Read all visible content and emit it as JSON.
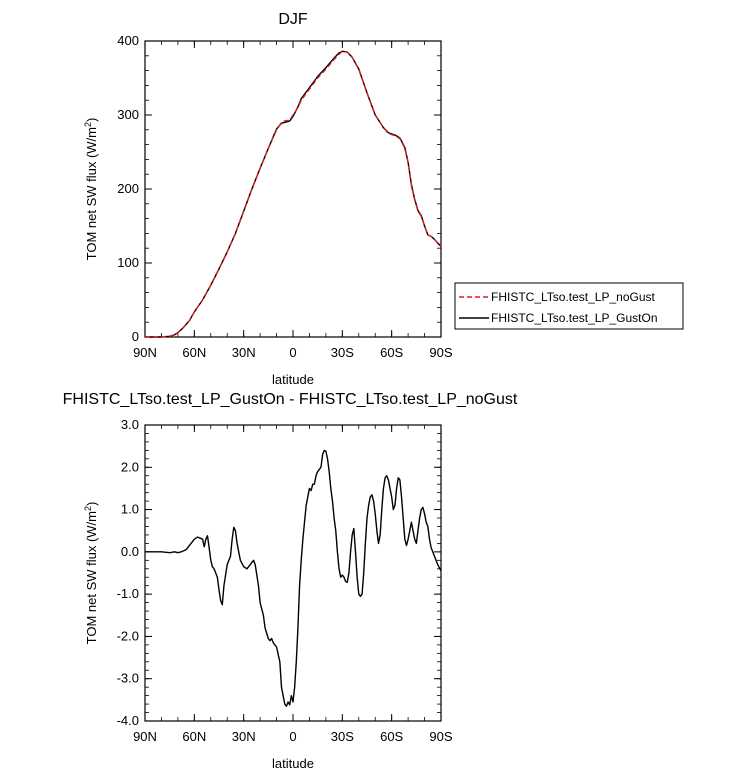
{
  "chart_data": [
    {
      "type": "line",
      "title": "DJF",
      "xlabel": "latitude",
      "ylabel": "TOM net SW flux (W/m",
      "ylabel_sup": "2",
      "ylabel_tail": ")",
      "xlim": [
        90,
        -90
      ],
      "ylim": [
        0,
        400
      ],
      "xticks": [
        {
          "v": 90,
          "label": "90N"
        },
        {
          "v": 60,
          "label": "60N"
        },
        {
          "v": 30,
          "label": "30N"
        },
        {
          "v": 0,
          "label": "0"
        },
        {
          "v": -30,
          "label": "30S"
        },
        {
          "v": -60,
          "label": "60S"
        },
        {
          "v": -90,
          "label": "90S"
        }
      ],
      "yticks": [
        {
          "v": 0,
          "label": "0"
        },
        {
          "v": 100,
          "label": "100"
        },
        {
          "v": 200,
          "label": "200"
        },
        {
          "v": 300,
          "label": "300"
        },
        {
          "v": 400,
          "label": "400"
        }
      ],
      "legend_position": "right",
      "series": [
        {
          "name": "FHISTC_LTso.test_LP_noGust",
          "color": "#e41a1c",
          "dash": "dashed",
          "points": [
            [
              90,
              0
            ],
            [
              80,
              0
            ],
            [
              75,
              1
            ],
            [
              72,
              3
            ],
            [
              70,
              6
            ],
            [
              67,
              12
            ],
            [
              63,
              22
            ],
            [
              60,
              34
            ],
            [
              55,
              50
            ],
            [
              50,
              70
            ],
            [
              45,
              92
            ],
            [
              40,
              115
            ],
            [
              35,
              140
            ],
            [
              30,
              170
            ],
            [
              25,
              200
            ],
            [
              20,
              228
            ],
            [
              15,
              255
            ],
            [
              10,
              280
            ],
            [
              7,
              290
            ],
            [
              5,
              292
            ],
            [
              2,
              293
            ],
            [
              0,
              300
            ],
            [
              -3,
              310
            ],
            [
              -5,
              320
            ],
            [
              -10,
              335
            ],
            [
              -15,
              350
            ],
            [
              -20,
              362
            ],
            [
              -25,
              375
            ],
            [
              -28,
              382
            ],
            [
              -30,
              386
            ],
            [
              -33,
              385
            ],
            [
              -36,
              378
            ],
            [
              -40,
              362
            ],
            [
              -45,
              330
            ],
            [
              -50,
              300
            ],
            [
              -55,
              283
            ],
            [
              -58,
              275
            ],
            [
              -62,
              272
            ],
            [
              -65,
              268
            ],
            [
              -68,
              255
            ],
            [
              -70,
              235
            ],
            [
              -72,
              205
            ],
            [
              -74,
              185
            ],
            [
              -76,
              170
            ],
            [
              -78,
              163
            ],
            [
              -80,
              150
            ],
            [
              -82,
              138
            ],
            [
              -84,
              136
            ],
            [
              -86,
              132
            ],
            [
              -88,
              127
            ],
            [
              -90,
              122
            ]
          ]
        },
        {
          "name": "FHISTC_LTso.test_LP_GustOn",
          "color": "#000000",
          "dash": "solid",
          "points": [
            [
              90,
              0
            ],
            [
              80,
              0
            ],
            [
              75,
              1
            ],
            [
              72,
              3
            ],
            [
              70,
              6
            ],
            [
              67,
              12
            ],
            [
              63,
              22
            ],
            [
              60,
              34
            ],
            [
              55,
              50
            ],
            [
              50,
              70
            ],
            [
              45,
              92
            ],
            [
              40,
              115
            ],
            [
              35,
              140
            ],
            [
              30,
              170
            ],
            [
              25,
              200
            ],
            [
              20,
              228
            ],
            [
              15,
              255
            ],
            [
              10,
              281
            ],
            [
              7,
              289
            ],
            [
              5,
              290
            ],
            [
              2,
              292
            ],
            [
              0,
              298
            ],
            [
              -3,
              311
            ],
            [
              -5,
              322
            ],
            [
              -10,
              337
            ],
            [
              -15,
              352
            ],
            [
              -20,
              364
            ],
            [
              -25,
              377
            ],
            [
              -28,
              384
            ],
            [
              -30,
              386
            ],
            [
              -33,
              385
            ],
            [
              -36,
              378
            ],
            [
              -40,
              362
            ],
            [
              -45,
              330
            ],
            [
              -50,
              300
            ],
            [
              -55,
              283
            ],
            [
              -58,
              276
            ],
            [
              -62,
              273
            ],
            [
              -65,
              269
            ],
            [
              -68,
              256
            ],
            [
              -70,
              236
            ],
            [
              -72,
              206
            ],
            [
              -74,
              186
            ],
            [
              -76,
              171
            ],
            [
              -78,
              164
            ],
            [
              -80,
              150
            ],
            [
              -82,
              138
            ],
            [
              -84,
              136
            ],
            [
              -86,
              132
            ],
            [
              -88,
              127
            ],
            [
              -90,
              122
            ]
          ]
        }
      ]
    },
    {
      "type": "line",
      "title": "FHISTC_LTso.test_LP_GustOn - FHISTC_LTso.test_LP_noGust",
      "xlabel": "latitude",
      "ylabel": "TOM net SW flux (W/m",
      "ylabel_sup": "2",
      "ylabel_tail": ")",
      "xlim": [
        90,
        -90
      ],
      "ylim": [
        -4,
        3
      ],
      "xticks": [
        {
          "v": 90,
          "label": "90N"
        },
        {
          "v": 60,
          "label": "60N"
        },
        {
          "v": 30,
          "label": "30N"
        },
        {
          "v": 0,
          "label": "0"
        },
        {
          "v": -30,
          "label": "30S"
        },
        {
          "v": -60,
          "label": "60S"
        },
        {
          "v": -90,
          "label": "90S"
        }
      ],
      "yticks": [
        {
          "v": -4,
          "label": "-4.0"
        },
        {
          "v": -3,
          "label": "-3.0"
        },
        {
          "v": -2,
          "label": "-2.0"
        },
        {
          "v": -1,
          "label": "-1.0"
        },
        {
          "v": 0,
          "label": "0.0"
        },
        {
          "v": 1,
          "label": "1.0"
        },
        {
          "v": 2,
          "label": "2.0"
        },
        {
          "v": 3,
          "label": "3.0"
        }
      ],
      "series": [
        {
          "color": "#000000",
          "dash": "solid",
          "points": [
            [
              90,
              0
            ],
            [
              80,
              0
            ],
            [
              75,
              -0.02
            ],
            [
              72,
              0
            ],
            [
              70,
              -0.02
            ],
            [
              68,
              0
            ],
            [
              65,
              0.05
            ],
            [
              62,
              0.2
            ],
            [
              60,
              0.3
            ],
            [
              58,
              0.35
            ],
            [
              55,
              0.3
            ],
            [
              54,
              0.12
            ],
            [
              53,
              0.3
            ],
            [
              52,
              0.38
            ],
            [
              51,
              0.1
            ],
            [
              50,
              -0.2
            ],
            [
              49,
              -0.35
            ],
            [
              48,
              -0.4
            ],
            [
              46,
              -0.6
            ],
            [
              45,
              -0.9
            ],
            [
              44,
              -1.15
            ],
            [
              43,
              -1.25
            ],
            [
              42,
              -0.8
            ],
            [
              40,
              -0.3
            ],
            [
              38,
              -0.1
            ],
            [
              37,
              0.3
            ],
            [
              36,
              0.58
            ],
            [
              35,
              0.5
            ],
            [
              34,
              0.2
            ],
            [
              33,
              0.0
            ],
            [
              32,
              -0.2
            ],
            [
              30,
              -0.35
            ],
            [
              28,
              -0.4
            ],
            [
              26,
              -0.3
            ],
            [
              24,
              -0.2
            ],
            [
              23,
              -0.3
            ],
            [
              21,
              -0.8
            ],
            [
              20,
              -1.2
            ],
            [
              18,
              -1.5
            ],
            [
              17,
              -1.8
            ],
            [
              15,
              -2.05
            ],
            [
              14,
              -2.1
            ],
            [
              13,
              -2.05
            ],
            [
              12,
              -2.15
            ],
            [
              11,
              -2.2
            ],
            [
              10,
              -2.25
            ],
            [
              8,
              -2.6
            ],
            [
              7,
              -3.2
            ],
            [
              6,
              -3.4
            ],
            [
              5,
              -3.6
            ],
            [
              4,
              -3.65
            ],
            [
              3,
              -3.55
            ],
            [
              2,
              -3.62
            ],
            [
              1,
              -3.4
            ],
            [
              0,
              -3.55
            ],
            [
              -1,
              -3.2
            ],
            [
              -2,
              -2.6
            ],
            [
              -3,
              -1.8
            ],
            [
              -4,
              -0.8
            ],
            [
              -5,
              -0.2
            ],
            [
              -6,
              0.3
            ],
            [
              -7,
              0.7
            ],
            [
              -8,
              1.1
            ],
            [
              -9,
              1.3
            ],
            [
              -10,
              1.5
            ],
            [
              -11,
              1.45
            ],
            [
              -12,
              1.6
            ],
            [
              -13,
              1.6
            ],
            [
              -14,
              1.8
            ],
            [
              -15,
              1.9
            ],
            [
              -17,
              2.0
            ],
            [
              -18,
              2.3
            ],
            [
              -19,
              2.4
            ],
            [
              -20,
              2.38
            ],
            [
              -21,
              2.2
            ],
            [
              -22,
              1.9
            ],
            [
              -23,
              1.5
            ],
            [
              -24,
              1.2
            ],
            [
              -25,
              0.8
            ],
            [
              -26,
              0.5
            ],
            [
              -27,
              0.0
            ],
            [
              -28,
              -0.4
            ],
            [
              -29,
              -0.6
            ],
            [
              -30,
              -0.55
            ],
            [
              -31,
              -0.6
            ],
            [
              -32,
              -0.7
            ],
            [
              -33,
              -0.72
            ],
            [
              -34,
              -0.5
            ],
            [
              -35,
              0.0
            ],
            [
              -36,
              0.4
            ],
            [
              -37,
              0.55
            ],
            [
              -38,
              0.0
            ],
            [
              -39,
              -0.6
            ],
            [
              -40,
              -1.0
            ],
            [
              -41,
              -1.05
            ],
            [
              -42,
              -1.0
            ],
            [
              -43,
              -0.5
            ],
            [
              -44,
              0.2
            ],
            [
              -45,
              0.8
            ],
            [
              -46,
              1.1
            ],
            [
              -47,
              1.3
            ],
            [
              -48,
              1.35
            ],
            [
              -49,
              1.2
            ],
            [
              -50,
              0.9
            ],
            [
              -51,
              0.5
            ],
            [
              -52,
              0.2
            ],
            [
              -53,
              0.4
            ],
            [
              -54,
              1.0
            ],
            [
              -55,
              1.5
            ],
            [
              -56,
              1.75
            ],
            [
              -57,
              1.8
            ],
            [
              -58,
              1.7
            ],
            [
              -59,
              1.5
            ],
            [
              -60,
              1.3
            ],
            [
              -61,
              1.0
            ],
            [
              -62,
              1.1
            ],
            [
              -63,
              1.5
            ],
            [
              -64,
              1.75
            ],
            [
              -65,
              1.7
            ],
            [
              -66,
              1.3
            ],
            [
              -67,
              0.8
            ],
            [
              -68,
              0.3
            ],
            [
              -69,
              0.15
            ],
            [
              -70,
              0.3
            ],
            [
              -71,
              0.5
            ],
            [
              -72,
              0.7
            ],
            [
              -73,
              0.5
            ],
            [
              -74,
              0.3
            ],
            [
              -75,
              0.2
            ],
            [
              -76,
              0.5
            ],
            [
              -77,
              0.8
            ],
            [
              -78,
              1.0
            ],
            [
              -79,
              1.05
            ],
            [
              -80,
              0.9
            ],
            [
              -81,
              0.7
            ],
            [
              -82,
              0.6
            ],
            [
              -83,
              0.3
            ],
            [
              -84,
              0.1
            ],
            [
              -86,
              -0.1
            ],
            [
              -88,
              -0.3
            ],
            [
              -90,
              -0.45
            ]
          ]
        }
      ]
    }
  ]
}
